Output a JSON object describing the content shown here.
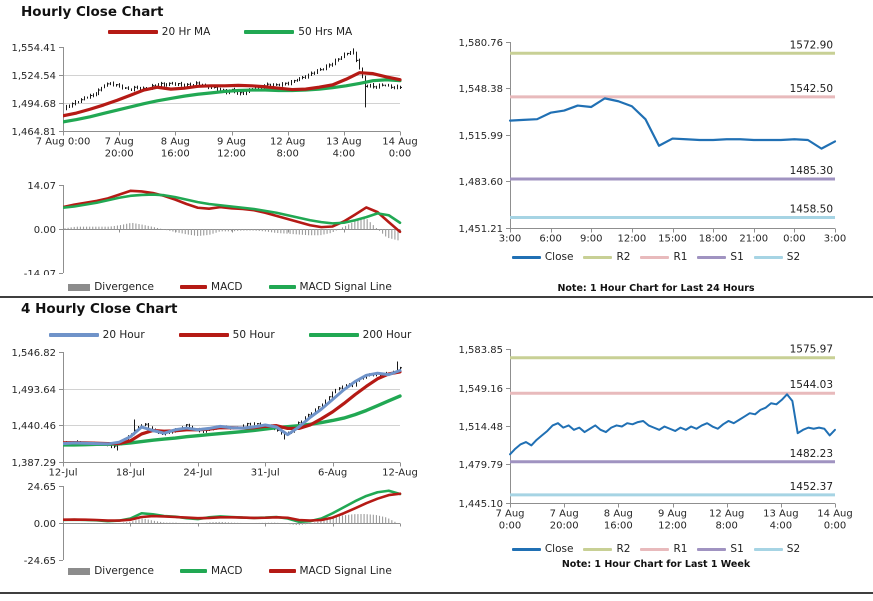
{
  "colors": {
    "red": "#b51a15",
    "green": "#21a853",
    "blue": "#2070b4",
    "steel": "#6f93c9",
    "gray": "#8c8c8c",
    "r2": "#c8d095",
    "r1": "#e8babc",
    "s1": "#a093c1",
    "s2": "#a6d4e4"
  },
  "chart_data": [
    {
      "name": "hourly-close-chart",
      "title": "Hourly Close Chart",
      "type": "price",
      "ylim": [
        1464.81,
        1554.41
      ],
      "y_ticks": [
        {
          "v": 1554.41,
          "label": "1,554.41"
        },
        {
          "v": 1524.54,
          "label": "1,524.54"
        },
        {
          "v": 1494.68,
          "label": "1,494.68"
        },
        {
          "v": 1464.81,
          "label": "1,464.81"
        }
      ],
      "grid_y": [
        1524.54,
        1494.68
      ],
      "x_labels": [
        [
          "7 Aug 0:00"
        ],
        [
          "7 Aug",
          "20:00"
        ],
        [
          "8 Aug",
          "16:00"
        ],
        [
          "9 Aug",
          "12:00"
        ],
        [
          "12 Aug",
          "8:00"
        ],
        [
          "13 Aug",
          "4:00"
        ],
        [
          "14 Aug",
          "0:00"
        ]
      ],
      "close": [
        1488,
        1492,
        1495,
        1498,
        1502,
        1504,
        1509,
        1514,
        1515,
        1513,
        1511,
        1509,
        1512,
        1510,
        1509,
        1513,
        1515,
        1514,
        1516,
        1515,
        1514,
        1513,
        1515,
        1514,
        1512,
        1511,
        1509,
        1506,
        1508,
        1504,
        1506,
        1509,
        1511,
        1512,
        1514,
        1513,
        1514,
        1516,
        1518,
        1520,
        1522,
        1525,
        1528,
        1531,
        1535,
        1539,
        1543,
        1547,
        1549,
        1535,
        1513,
        1514,
        1512,
        1514,
        1512,
        1511,
        1512
      ],
      "bars": {
        "upsample": 115,
        "spikes": [
          {
            "x": 0.857,
            "high": 1553
          },
          {
            "x": 0.893,
            "low": 1490
          }
        ]
      },
      "series": [
        {
          "label": "50 Hrs MA",
          "color": "green",
          "width": 3.2,
          "values": [
            1474.5,
            1477,
            1480,
            1483.5,
            1487,
            1490.5,
            1494,
            1497,
            1499.5,
            1502,
            1504,
            1505.5,
            1507,
            1508,
            1508.5,
            1508.5,
            1508,
            1508,
            1508.5,
            1509.5,
            1511,
            1513,
            1515.5,
            1518.5,
            1519.5,
            1518.5
          ]
        },
        {
          "label": "20 Hr MA",
          "color": "red",
          "width": 3.2,
          "values": [
            1481,
            1484,
            1488,
            1492.5,
            1497.5,
            1503,
            1508.5,
            1511.5,
            1509.5,
            1510.5,
            1512.5,
            1513,
            1513,
            1513.5,
            1513,
            1512,
            1510.5,
            1509,
            1509.5,
            1511.5,
            1514,
            1520,
            1527,
            1526,
            1522.5,
            1519.5
          ]
        }
      ],
      "legend": [
        {
          "label": "20 Hr MA",
          "color": "red",
          "swatch": "line"
        },
        {
          "label": "50 Hrs MA",
          "color": "green",
          "swatch": "line"
        }
      ]
    },
    {
      "name": "hourly-macd",
      "type": "macd",
      "ylim": [
        -14.07,
        14.07
      ],
      "y_ticks": [
        {
          "v": 14.07,
          "label": "14.07"
        },
        {
          "v": 0,
          "label": "0.00"
        },
        {
          "v": -14.07,
          "label": "-14.07"
        }
      ],
      "macd": {
        "label": "MACD",
        "color": "red",
        "width": 2.6,
        "values": [
          7.0,
          7.8,
          8.4,
          9.0,
          9.8,
          11.0,
          12.2,
          12.0,
          11.5,
          10.6,
          9.4,
          8.0,
          6.8,
          6.5,
          7.0,
          6.6,
          6.4,
          6.0,
          5.2,
          4.2,
          3.2,
          2.2,
          1.2,
          0.6,
          0.8,
          2.4,
          4.6,
          6.9,
          5.4,
          2.2,
          -0.9
        ]
      },
      "signal": {
        "label": "MACD Signal Line",
        "color": "green",
        "width": 2.6,
        "values": [
          6.8,
          7.2,
          7.8,
          8.4,
          9.2,
          10.0,
          10.6,
          10.9,
          11.0,
          10.8,
          10.2,
          9.4,
          8.6,
          8.0,
          7.6,
          7.2,
          6.8,
          6.4,
          5.8,
          5.2,
          4.4,
          3.6,
          2.8,
          2.2,
          1.8,
          2.0,
          2.8,
          3.8,
          5.0,
          4.4,
          2.0
        ]
      },
      "divergence_label": "Divergence",
      "legend": [
        {
          "label": "Divergence",
          "color": "gray",
          "swatch": "box"
        },
        {
          "label": "MACD",
          "color": "red",
          "swatch": "line"
        },
        {
          "label": "MACD Signal Line",
          "color": "green",
          "swatch": "line"
        }
      ]
    },
    {
      "name": "hourly-pivot-chart",
      "type": "pivot",
      "ylim": [
        1451.21,
        1580.76
      ],
      "y_ticks": [
        {
          "v": 1580.76,
          "label": "1,580.76"
        },
        {
          "v": 1548.38,
          "label": "1,548.38"
        },
        {
          "v": 1515.99,
          "label": "1,515.99"
        },
        {
          "v": 1483.6,
          "label": "1,483.60"
        },
        {
          "v": 1451.21,
          "label": "1,451.21"
        }
      ],
      "x_labels": [
        [
          "3:00"
        ],
        [
          "6:00"
        ],
        [
          "9:00"
        ],
        [
          "12:00"
        ],
        [
          "15:00"
        ],
        [
          "18:00"
        ],
        [
          "21:00"
        ],
        [
          "0:00"
        ],
        [
          "3:00"
        ]
      ],
      "pivots": [
        {
          "name": "R2",
          "value": 1572.9,
          "label": "1572.90",
          "color": "r2"
        },
        {
          "name": "R1",
          "value": 1542.5,
          "label": "1542.50",
          "color": "r1"
        },
        {
          "name": "S1",
          "value": 1485.3,
          "label": "1485.30",
          "color": "s1"
        },
        {
          "name": "S2",
          "value": 1458.5,
          "label": "1458.50",
          "color": "s2"
        }
      ],
      "close": {
        "label": "Close",
        "color": "blue",
        "width": 2.2,
        "values": [
          1526,
          1526.5,
          1527,
          1531.5,
          1533,
          1536.5,
          1535.5,
          1541.5,
          1539.5,
          1536,
          1527,
          1508.5,
          1513.5,
          1513,
          1512.5,
          1512.5,
          1513,
          1513,
          1512.5,
          1512.5,
          1512.5,
          1513,
          1512.5,
          1506.5,
          1511.5
        ]
      },
      "legend": [
        {
          "label": "Close",
          "color": "blue",
          "swatch": "line"
        },
        {
          "label": "R2",
          "color": "r2",
          "swatch": "line"
        },
        {
          "label": "R1",
          "color": "r1",
          "swatch": "line"
        },
        {
          "label": "S1",
          "color": "s1",
          "swatch": "line"
        },
        {
          "label": "S2",
          "color": "s2",
          "swatch": "line"
        }
      ],
      "note": "Note: 1 Hour Chart for Last 24 Hours"
    },
    {
      "name": "4hourly-close-chart",
      "title": "4 Hourly Close Chart",
      "type": "price",
      "ylim": [
        1387.29,
        1546.82
      ],
      "y_ticks": [
        {
          "v": 1546.82,
          "label": "1,546.82"
        },
        {
          "v": 1493.64,
          "label": "1,493.64"
        },
        {
          "v": 1440.46,
          "label": "1,440.46"
        },
        {
          "v": 1387.29,
          "label": "1,387.29"
        }
      ],
      "grid_y": [
        1493.64,
        1440.46
      ],
      "x_labels": [
        [
          "12-Jul"
        ],
        [
          "18-Jul"
        ],
        [
          "24-Jul"
        ],
        [
          "31-Jul"
        ],
        [
          "6-Aug"
        ],
        [
          "12-Aug"
        ]
      ],
      "close": [
        1414,
        1415.5,
        1416,
        1415,
        1414,
        1415,
        1414,
        1412,
        1408,
        1413,
        1420,
        1427,
        1436,
        1444,
        1438,
        1431,
        1427,
        1429,
        1433,
        1436,
        1441,
        1437,
        1433,
        1431,
        1434,
        1437,
        1439,
        1437,
        1436,
        1439,
        1442,
        1443,
        1441,
        1440,
        1438,
        1433,
        1427,
        1430,
        1441,
        1448,
        1455,
        1462,
        1470,
        1478,
        1490,
        1494,
        1499,
        1496,
        1506,
        1511,
        1515,
        1514,
        1512,
        1516,
        1518,
        1524
      ],
      "bars": {
        "upsample": 100,
        "spikes": [
          {
            "x": 0.165,
            "low": 1404
          },
          {
            "x": 0.215,
            "high": 1449
          },
          {
            "x": 0.655,
            "low": 1420
          },
          {
            "x": 0.985,
            "high": 1533
          }
        ]
      },
      "series": [
        {
          "label": "200 Hour",
          "color": "green",
          "width": 3.4,
          "values": [
            1412,
            1412,
            1412.5,
            1413,
            1413,
            1413.5,
            1415,
            1417,
            1419,
            1420.5,
            1422,
            1424,
            1425.5,
            1427,
            1428.5,
            1430,
            1431.5,
            1433,
            1435,
            1437,
            1438.5,
            1440,
            1442,
            1444.5,
            1447.5,
            1451,
            1456,
            1462,
            1469,
            1476,
            1483
          ]
        },
        {
          "label": "50 Hour",
          "color": "red",
          "width": 3.2,
          "values": [
            1415,
            1415.5,
            1415,
            1414.5,
            1414,
            1414,
            1418,
            1428,
            1433,
            1432,
            1432.5,
            1434,
            1434,
            1435,
            1437,
            1437,
            1436.5,
            1437,
            1439,
            1440,
            1436,
            1436,
            1441,
            1450,
            1460,
            1472,
            1485,
            1497,
            1508,
            1515,
            1518
          ]
        },
        {
          "label": "20 Hour",
          "color": "steel",
          "width": 3,
          "values": [
            1414,
            1415,
            1414.5,
            1414,
            1413.5,
            1416,
            1424,
            1438,
            1433,
            1429,
            1434,
            1436.5,
            1434,
            1436,
            1439,
            1437,
            1436.5,
            1438,
            1441,
            1438,
            1427,
            1438,
            1452,
            1464,
            1478,
            1492,
            1504,
            1513,
            1516,
            1514,
            1520
          ]
        }
      ],
      "legend": [
        {
          "label": "20 Hour",
          "color": "steel",
          "swatch": "line"
        },
        {
          "label": "50 Hour",
          "color": "red",
          "swatch": "line"
        },
        {
          "label": "200 Hour",
          "color": "green",
          "swatch": "line"
        }
      ]
    },
    {
      "name": "4hourly-macd",
      "type": "macd",
      "ylim": [
        -24.65,
        24.65
      ],
      "y_ticks": [
        {
          "v": 24.65,
          "label": "24.65"
        },
        {
          "v": 0,
          "label": "0.00"
        },
        {
          "v": -24.65,
          "label": "-24.65"
        }
      ],
      "macd": {
        "label": "MACD",
        "color": "green",
        "width": 2.6,
        "values": [
          2.0,
          2.2,
          2.0,
          1.8,
          1.2,
          1.6,
          3.0,
          6.5,
          5.8,
          4.6,
          4.2,
          3.2,
          2.6,
          3.8,
          4.4,
          4.0,
          3.6,
          3.4,
          3.6,
          4.0,
          3.0,
          0.8,
          1.2,
          3.0,
          6.5,
          10.5,
          14.5,
          18.0,
          20.5,
          21.5,
          19.3
        ]
      },
      "signal": {
        "label": "MACD Signal Line",
        "color": "red",
        "width": 2.6,
        "values": [
          2.2,
          2.3,
          2.2,
          2.0,
          1.6,
          1.6,
          2.2,
          4.0,
          4.6,
          4.4,
          4.0,
          3.6,
          3.2,
          3.4,
          3.8,
          3.8,
          3.6,
          3.4,
          3.5,
          3.8,
          3.5,
          2.0,
          1.6,
          2.0,
          3.6,
          6.5,
          9.8,
          13.2,
          16.2,
          18.6,
          19.5
        ]
      },
      "divergence_label": "Divergence",
      "legend": [
        {
          "label": "Divergence",
          "color": "gray",
          "swatch": "box"
        },
        {
          "label": "MACD",
          "color": "green",
          "swatch": "line"
        },
        {
          "label": "MACD Signal Line",
          "color": "red",
          "swatch": "line"
        }
      ]
    },
    {
      "name": "weekly-pivot-chart",
      "type": "pivot",
      "ylim": [
        1445.1,
        1583.85
      ],
      "y_ticks": [
        {
          "v": 1583.85,
          "label": "1,583.85"
        },
        {
          "v": 1549.16,
          "label": "1,549.16"
        },
        {
          "v": 1514.48,
          "label": "1,514.48"
        },
        {
          "v": 1479.79,
          "label": "1,479.79"
        },
        {
          "v": 1445.1,
          "label": "1,445.10"
        }
      ],
      "x_labels": [
        [
          "7 Aug",
          "0:00"
        ],
        [
          "7 Aug",
          "20:00"
        ],
        [
          "8 Aug",
          "16:00"
        ],
        [
          "9 Aug",
          "12:00"
        ],
        [
          "12 Aug",
          "8:00"
        ],
        [
          "13 Aug",
          "4:00"
        ],
        [
          "14 Aug",
          "0:00"
        ]
      ],
      "pivots": [
        {
          "name": "R2",
          "value": 1575.97,
          "label": "1575.97",
          "color": "r2"
        },
        {
          "name": "R1",
          "value": 1544.03,
          "label": "1544.03",
          "color": "r1"
        },
        {
          "name": "S1",
          "value": 1482.23,
          "label": "1482.23",
          "color": "s1"
        },
        {
          "name": "S2",
          "value": 1452.37,
          "label": "1452.37",
          "color": "s2"
        }
      ],
      "close": {
        "label": "Close",
        "color": "blue",
        "width": 2,
        "values": [
          1489,
          1494,
          1498,
          1500,
          1497,
          1502,
          1506,
          1510,
          1515,
          1517,
          1513,
          1515,
          1511,
          1513,
          1509,
          1512,
          1515,
          1511,
          1509,
          1513,
          1515,
          1514,
          1517,
          1516,
          1518,
          1519,
          1515,
          1513,
          1511,
          1514,
          1512,
          1510,
          1513,
          1511,
          1514,
          1512,
          1515,
          1517,
          1514,
          1512,
          1516,
          1519,
          1517,
          1520,
          1523,
          1526,
          1525,
          1529,
          1531,
          1535,
          1534,
          1538,
          1543,
          1537,
          1508,
          1511,
          1513,
          1512,
          1513,
          1512,
          1506,
          1511
        ]
      },
      "legend": [
        {
          "label": "Close",
          "color": "blue",
          "swatch": "line"
        },
        {
          "label": "R2",
          "color": "r2",
          "swatch": "line"
        },
        {
          "label": "R1",
          "color": "r1",
          "swatch": "line"
        },
        {
          "label": "S1",
          "color": "s1",
          "swatch": "line"
        },
        {
          "label": "S2",
          "color": "s2",
          "swatch": "line"
        }
      ],
      "note": "Note: 1 Hour Chart for Last 1 Week"
    }
  ]
}
